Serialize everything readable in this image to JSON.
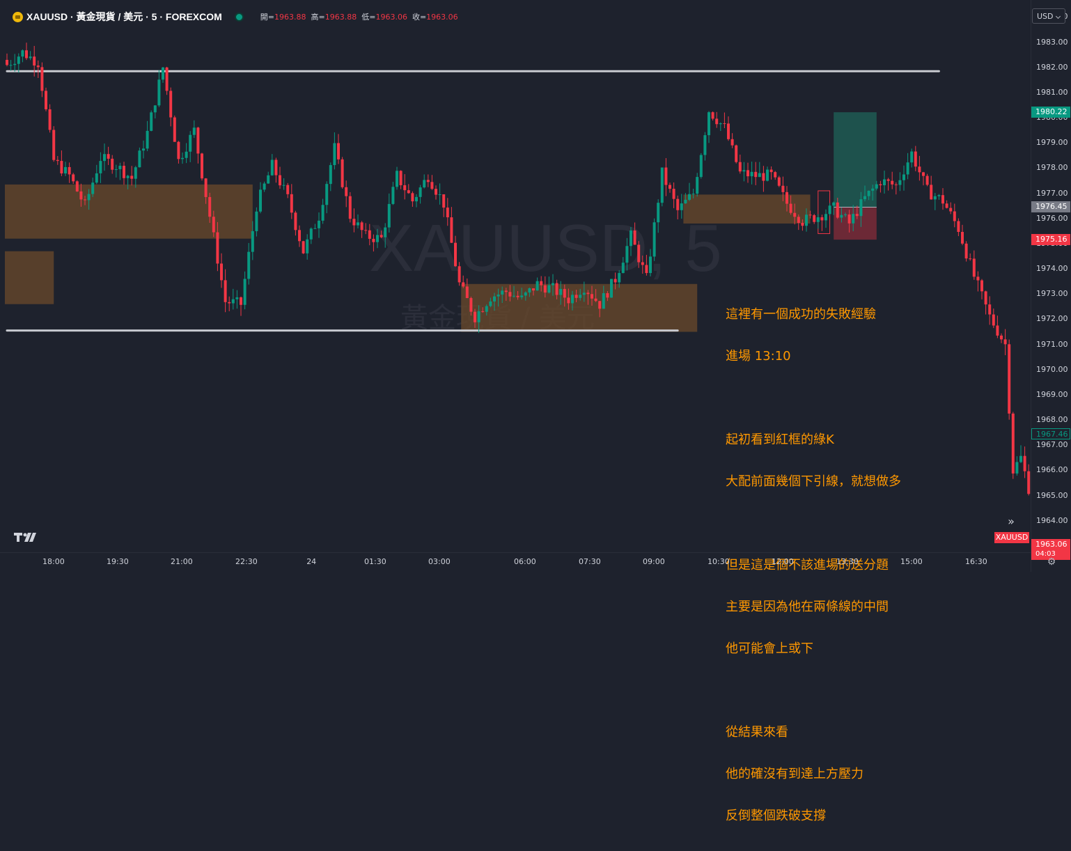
{
  "header": {
    "title": "XAUUSD · 黃金現貨 / 美元 · 5 · FOREXCOM",
    "ohlc": [
      {
        "key": "開=",
        "value": "1963.88"
      },
      {
        "key": "高=",
        "value": "1963.88"
      },
      {
        "key": "低=",
        "value": "1963.06"
      },
      {
        "key": "收=",
        "value": "1963.06"
      }
    ]
  },
  "currency_button": "USD",
  "watermark": {
    "title": "XAUUSD, 5",
    "subtitle": "黃金現貨 / 美元"
  },
  "note_lines": [
    "這裡有一個成功的失敗經驗",
    "進場 13:10",
    "",
    "起初看到紅框的綠K",
    "大配前面幾個下引線，就想做多",
    "",
    "但是這是個不該進場的送分題",
    "主要是因為他在兩條線的中間",
    "他可能會上或下",
    "",
    "從結果來看",
    "他的確沒有到達上方壓力",
    "反倒整個跌破支撐"
  ],
  "price_labels": {
    "target": "1980.22",
    "entry": "1976.45",
    "stop": "1975.16",
    "ref": "1967.46",
    "last": "1963.06",
    "countdown": "04:03",
    "symbol_tag": "XAUUSD"
  },
  "colors": {
    "background": "#1e222d",
    "up": "#089981",
    "down": "#f23645",
    "zone": "#6b4a2b",
    "line": "#b2b5be",
    "note": "#ff9800",
    "target_box": "#1e5a53",
    "stop_box": "#7a2a38"
  },
  "icons": {
    "logo": "tradingview-logo-icon",
    "scroll": "double-chevron-right-icon",
    "settings": "gear-icon"
  },
  "chart_data": {
    "type": "candlestick",
    "x_ticks": [
      "18:00",
      "19:30",
      "21:00",
      "22:30",
      "24",
      "01:30",
      "03:00",
      "06:00",
      "07:30",
      "09:00",
      "10:30",
      "12:00",
      "13:30",
      "15:00",
      "16:30"
    ],
    "y_ticks": [
      "1984.00",
      "1983.00",
      "1982.00",
      "1981.00",
      "1980.00",
      "1979.00",
      "1978.00",
      "1977.00",
      "1976.00",
      "1975.00",
      "1974.00",
      "1973.00",
      "1972.00",
      "1971.00",
      "1970.00",
      "1969.00",
      "1968.00",
      "1967.00",
      "1966.00",
      "1965.00",
      "1964.00"
    ],
    "ylim": [
      1963.3,
      1984.4
    ],
    "horizontal_lines": [
      {
        "price": 1981.85,
        "from_index": 0,
        "to_index": 239
      },
      {
        "price": 1971.55,
        "from_index": 0,
        "to_index": 172
      }
    ],
    "zones": [
      {
        "from_index": 0,
        "to_index": 63,
        "top": 1977.35,
        "bottom": 1975.2
      },
      {
        "from_index": 0,
        "to_index": 12,
        "top": 1974.7,
        "bottom": 1972.6
      },
      {
        "from_index": 117,
        "to_index": 177,
        "top": 1973.4,
        "bottom": 1971.5
      },
      {
        "from_index": 174,
        "to_index": 206,
        "top": 1976.95,
        "bottom": 1975.8
      }
    ],
    "highlight_box": {
      "from_index": 208,
      "to_index": 211,
      "top": 1977.1,
      "bottom": 1975.4
    },
    "position": {
      "from_index": 212,
      "to_index": 223,
      "entry": 1976.45,
      "target": 1980.22,
      "stop": 1975.16
    },
    "anchors": [
      [
        0,
        1982.1
      ],
      [
        4,
        1982.6
      ],
      [
        8,
        1982.2
      ],
      [
        12,
        1978.3
      ],
      [
        16,
        1977.7
      ],
      [
        20,
        1976.5
      ],
      [
        24,
        1978.4
      ],
      [
        28,
        1978.1
      ],
      [
        32,
        1977.6
      ],
      [
        36,
        1979.4
      ],
      [
        40,
        1982.0
      ],
      [
        44,
        1978.3
      ],
      [
        48,
        1979.5
      ],
      [
        52,
        1976.1
      ],
      [
        56,
        1972.7
      ],
      [
        60,
        1972.6
      ],
      [
        64,
        1976.5
      ],
      [
        68,
        1978.1
      ],
      [
        72,
        1976.8
      ],
      [
        76,
        1974.7
      ],
      [
        80,
        1976.1
      ],
      [
        84,
        1978.8
      ],
      [
        88,
        1976.1
      ],
      [
        92,
        1975.3
      ],
      [
        96,
        1975.2
      ],
      [
        100,
        1977.7
      ],
      [
        104,
        1976.7
      ],
      [
        108,
        1977.7
      ],
      [
        112,
        1976.6
      ],
      [
        116,
        1973.4
      ],
      [
        120,
        1972.1
      ],
      [
        124,
        1972.9
      ],
      [
        128,
        1973.1
      ],
      [
        132,
        1972.8
      ],
      [
        136,
        1973.4
      ],
      [
        140,
        1973.2
      ],
      [
        144,
        1972.8
      ],
      [
        148,
        1973.3
      ],
      [
        152,
        1972.6
      ],
      [
        156,
        1973.6
      ],
      [
        160,
        1975.3
      ],
      [
        164,
        1973.6
      ],
      [
        168,
        1977.8
      ],
      [
        172,
        1976.3
      ],
      [
        176,
        1977.0
      ],
      [
        180,
        1980.3
      ],
      [
        184,
        1979.6
      ],
      [
        188,
        1977.8
      ],
      [
        192,
        1977.7
      ],
      [
        196,
        1977.7
      ],
      [
        200,
        1976.6
      ],
      [
        204,
        1975.9
      ],
      [
        208,
        1976.1
      ],
      [
        212,
        1976.4
      ],
      [
        216,
        1975.8
      ],
      [
        220,
        1976.8
      ],
      [
        224,
        1977.5
      ],
      [
        228,
        1977.3
      ],
      [
        232,
        1978.6
      ],
      [
        236,
        1977.1
      ],
      [
        240,
        1976.7
      ],
      [
        244,
        1975.6
      ],
      [
        248,
        1973.7
      ],
      [
        252,
        1972.1
      ],
      [
        256,
        1971.0
      ],
      [
        258,
        1966.0
      ],
      [
        260,
        1966.5
      ],
      [
        262,
        1965.3
      ],
      [
        263,
        1967.4
      ]
    ]
  }
}
